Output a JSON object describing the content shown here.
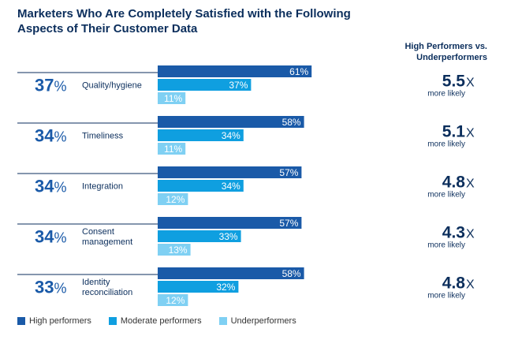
{
  "chart_data": {
    "type": "bar",
    "title": "Marketers Who Are Completely Satisfied with the Following Aspects of Their Customer Data",
    "ratio_header": "High Performers vs. Underperformers",
    "categories": [
      "Quality/hygiene",
      "Timeliness",
      "Integration",
      "Consent management",
      "Identity reconciliation"
    ],
    "overall_values": [
      37,
      34,
      34,
      34,
      33
    ],
    "series": [
      {
        "name": "High performers",
        "values": [
          61,
          58,
          57,
          57,
          58
        ],
        "color": "#1a5aa8"
      },
      {
        "name": "Moderate performers",
        "values": [
          37,
          34,
          34,
          33,
          32
        ],
        "color": "#0f9fe0"
      },
      {
        "name": "Underperformers",
        "values": [
          11,
          11,
          12,
          13,
          12
        ],
        "color": "#7fd0f3"
      }
    ],
    "ratios": [
      "5.5",
      "5.1",
      "4.8",
      "4.3",
      "4.8"
    ],
    "ratio_suffix": "X",
    "ratio_caption": "more likely",
    "unit": "%",
    "xlim": [
      0,
      100
    ],
    "legend_position": "bottom-left"
  }
}
